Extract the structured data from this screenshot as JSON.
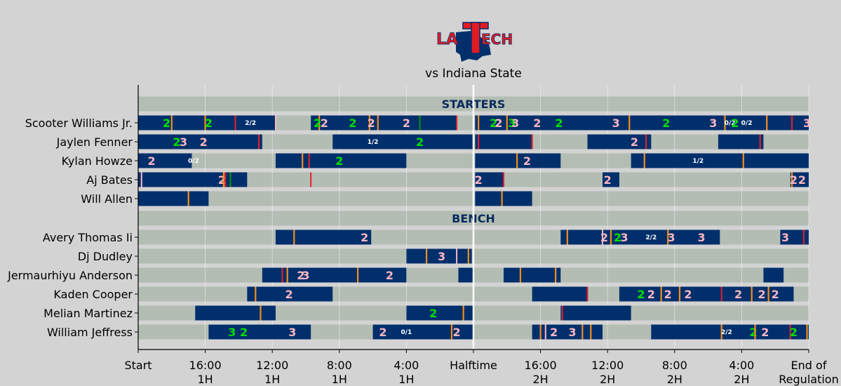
{
  "header": {
    "subtitle": "vs Indiana State",
    "logo_text": "LA TECH"
  },
  "colors": {
    "background": "#d3d3d3",
    "track": "#b3bdb3",
    "on_court": "#002f6c",
    "made_2": "#00e000",
    "made_3": "#00e000",
    "missed": "#ffb6c1",
    "foul": "#e8202a",
    "turnover": "#f28e1c",
    "steal": "#0a8a0a",
    "halftime_line": "#ffffff",
    "logo_red": "#e31b23",
    "logo_blue": "#002f6c"
  },
  "chart_data": {
    "type": "timeline",
    "subtitle": "vs Indiana State",
    "x_axis": {
      "unit": "game minutes elapsed",
      "range": [
        0,
        40
      ],
      "ticks": [
        {
          "value": 0,
          "label": "Start",
          "sub": ""
        },
        {
          "value": 4,
          "label": "16:00",
          "sub": "1H"
        },
        {
          "value": 8,
          "label": "12:00",
          "sub": "1H"
        },
        {
          "value": 12,
          "label": "8:00",
          "sub": "1H"
        },
        {
          "value": 16,
          "label": "4:00",
          "sub": "1H"
        },
        {
          "value": 20,
          "label": "Halftime",
          "sub": ""
        },
        {
          "value": 24,
          "label": "16:00",
          "sub": "2H"
        },
        {
          "value": 28,
          "label": "12:00",
          "sub": "2H"
        },
        {
          "value": 32,
          "label": "8:00",
          "sub": "2H"
        },
        {
          "value": 36,
          "label": "4:00",
          "sub": "2H"
        },
        {
          "value": 40,
          "label": "End of",
          "sub": "Regulation"
        }
      ]
    },
    "sections": [
      "STARTERS",
      "BENCH"
    ],
    "players": [
      {
        "name": "Scooter Williams Jr.",
        "group": "starters",
        "stints": [
          [
            0,
            8.2
          ],
          [
            10.3,
            19.0
          ],
          [
            20.1,
            40
          ]
        ],
        "events": [
          {
            "t": 1.7,
            "type": "made",
            "label": "2"
          },
          {
            "t": 2.0,
            "type": "turnover"
          },
          {
            "t": 4.0,
            "type": "turnover"
          },
          {
            "t": 4.2,
            "type": "made",
            "label": "2"
          },
          {
            "t": 5.8,
            "type": "foul"
          },
          {
            "t": 6.7,
            "type": "ft",
            "label": "2/2"
          },
          {
            "t": 8.2,
            "type": "missed-mark"
          },
          {
            "t": 10.8,
            "type": "turnover"
          },
          {
            "t": 10.7,
            "type": "made",
            "label": "2"
          },
          {
            "t": 11.1,
            "type": "missed",
            "label": "2"
          },
          {
            "t": 12.8,
            "type": "made",
            "label": "2"
          },
          {
            "t": 13.8,
            "type": "turnover"
          },
          {
            "t": 13.9,
            "type": "missed",
            "label": "2"
          },
          {
            "t": 14.3,
            "type": "turnover"
          },
          {
            "t": 16.0,
            "type": "missed",
            "label": "2"
          },
          {
            "t": 16.8,
            "type": "steal"
          },
          {
            "t": 19.0,
            "type": "foul"
          },
          {
            "t": 20.3,
            "type": "turnover"
          },
          {
            "t": 21.2,
            "type": "made",
            "label": "2"
          },
          {
            "t": 21.5,
            "type": "missed",
            "label": "2"
          },
          {
            "t": 22.0,
            "type": "turnover"
          },
          {
            "t": 22.3,
            "type": "made",
            "label": "3"
          },
          {
            "t": 22.5,
            "type": "missed",
            "label": "3"
          },
          {
            "t": 23.8,
            "type": "missed",
            "label": "2"
          },
          {
            "t": 25.1,
            "type": "made",
            "label": "2"
          },
          {
            "t": 28.5,
            "type": "missed",
            "label": "3"
          },
          {
            "t": 29.3,
            "type": "turnover"
          },
          {
            "t": 31.5,
            "type": "made",
            "label": "2"
          },
          {
            "t": 34.3,
            "type": "missed",
            "label": "3"
          },
          {
            "t": 35.0,
            "type": "turnover"
          },
          {
            "t": 35.3,
            "type": "ft",
            "label": "0/2"
          },
          {
            "t": 35.6,
            "type": "made",
            "label": "2"
          },
          {
            "t": 36.3,
            "type": "ft",
            "label": "0/2"
          },
          {
            "t": 37.5,
            "type": "turnover"
          },
          {
            "t": 39.0,
            "type": "foul"
          },
          {
            "t": 39.9,
            "type": "missed",
            "label": "3"
          }
        ]
      },
      {
        "name": "Jaylen Fenner",
        "group": "starters",
        "stints": [
          [
            0,
            7.4
          ],
          [
            11.6,
            20
          ],
          [
            20.1,
            23.5
          ],
          [
            26.8,
            30.6
          ],
          [
            34.6,
            37.3
          ]
        ],
        "events": [
          {
            "t": 2.3,
            "type": "made",
            "label": "2"
          },
          {
            "t": 2.7,
            "type": "missed",
            "label": "3"
          },
          {
            "t": 3.9,
            "type": "missed",
            "label": "2"
          },
          {
            "t": 7.2,
            "type": "foul"
          },
          {
            "t": 14.0,
            "type": "ft",
            "label": "1/2"
          },
          {
            "t": 16.8,
            "type": "made",
            "label": "2"
          },
          {
            "t": 20.3,
            "type": "foul"
          },
          {
            "t": 23.5,
            "type": "foul"
          },
          {
            "t": 29.6,
            "type": "missed",
            "label": "2"
          },
          {
            "t": 30.3,
            "type": "foul"
          },
          {
            "t": 37.1,
            "type": "foul"
          }
        ]
      },
      {
        "name": "Kylan Howze",
        "group": "starters",
        "stints": [
          [
            0,
            3.2
          ],
          [
            8.2,
            16.0
          ],
          [
            20.1,
            25.2
          ],
          [
            29.4,
            40
          ]
        ],
        "events": [
          {
            "t": 0.8,
            "type": "missed",
            "label": "2"
          },
          {
            "t": 3.3,
            "type": "ft",
            "label": "0/2"
          },
          {
            "t": 9.8,
            "type": "turnover"
          },
          {
            "t": 10.2,
            "type": "foul"
          },
          {
            "t": 12.0,
            "type": "made",
            "label": "2"
          },
          {
            "t": 22.6,
            "type": "turnover"
          },
          {
            "t": 23.2,
            "type": "missed",
            "label": "2"
          },
          {
            "t": 30.2,
            "type": "turnover"
          },
          {
            "t": 33.4,
            "type": "ft",
            "label": "1/2"
          },
          {
            "t": 36.1,
            "type": "turnover"
          }
        ]
      },
      {
        "name": "Aj Bates",
        "group": "starters",
        "stints": [
          [
            0,
            6.5
          ],
          [
            20.1,
            21.8
          ],
          [
            27.7,
            28.7
          ],
          [
            38.9,
            40
          ]
        ],
        "events": [
          {
            "t": 0.2,
            "type": "missed-mark"
          },
          {
            "t": 5.0,
            "type": "missed",
            "label": "2"
          },
          {
            "t": 5.1,
            "type": "turnover"
          },
          {
            "t": 5.2,
            "type": "foul"
          },
          {
            "t": 5.5,
            "type": "steal"
          },
          {
            "t": 10.3,
            "type": "foul"
          },
          {
            "t": 20.3,
            "type": "missed",
            "label": "2"
          },
          {
            "t": 21.8,
            "type": "foul"
          },
          {
            "t": 28.0,
            "type": "missed",
            "label": "2"
          },
          {
            "t": 39.0,
            "type": "turnover"
          },
          {
            "t": 39.1,
            "type": "missed",
            "label": "2"
          },
          {
            "t": 39.6,
            "type": "missed",
            "label": "2"
          }
        ]
      },
      {
        "name": "Will Allen",
        "group": "starters",
        "stints": [
          [
            0,
            4.2
          ],
          [
            20.1,
            23.5
          ]
        ],
        "events": [
          {
            "t": 3.0,
            "type": "turnover"
          },
          {
            "t": 21.7,
            "type": "turnover"
          }
        ]
      },
      {
        "name": "Avery Thomas Ii",
        "group": "bench",
        "stints": [
          [
            8.2,
            13.9
          ],
          [
            25.2,
            34.7
          ],
          [
            38.3,
            40
          ]
        ],
        "events": [
          {
            "t": 9.3,
            "type": "turnover"
          },
          {
            "t": 13.5,
            "type": "missed",
            "label": "2"
          },
          {
            "t": 25.6,
            "type": "turnover"
          },
          {
            "t": 27.7,
            "type": "missed-mark"
          },
          {
            "t": 27.8,
            "type": "missed",
            "label": "2"
          },
          {
            "t": 28.2,
            "type": "turnover"
          },
          {
            "t": 28.6,
            "type": "made",
            "label": "2"
          },
          {
            "t": 29.0,
            "type": "missed",
            "label": "3"
          },
          {
            "t": 30.6,
            "type": "ft",
            "label": "2/2"
          },
          {
            "t": 31.6,
            "type": "turnover"
          },
          {
            "t": 31.8,
            "type": "missed",
            "label": "3"
          },
          {
            "t": 33.6,
            "type": "missed",
            "label": "3"
          },
          {
            "t": 38.6,
            "type": "missed",
            "label": "3"
          },
          {
            "t": 39.7,
            "type": "foul"
          }
        ]
      },
      {
        "name": "Dj Dudley",
        "group": "bench",
        "stints": [
          [
            16.0,
            19.9
          ]
        ],
        "events": [
          {
            "t": 17.2,
            "type": "turnover"
          },
          {
            "t": 18.1,
            "type": "missed",
            "label": "3"
          },
          {
            "t": 19.0,
            "type": "missed-mark"
          },
          {
            "t": 19.7,
            "type": "turnover"
          }
        ]
      },
      {
        "name": "Jermaurhiyu Anderson",
        "group": "bench",
        "stints": [
          [
            7.4,
            16.0
          ],
          [
            19.1,
            20
          ],
          [
            21.8,
            25.2
          ],
          [
            37.3,
            38.5
          ]
        ],
        "events": [
          {
            "t": 8.6,
            "type": "foul"
          },
          {
            "t": 8.9,
            "type": "turnover"
          },
          {
            "t": 9.7,
            "type": "missed",
            "label": "2"
          },
          {
            "t": 10.0,
            "type": "missed",
            "label": "3"
          },
          {
            "t": 13.1,
            "type": "turnover"
          },
          {
            "t": 15.0,
            "type": "missed",
            "label": "2"
          },
          {
            "t": 22.8,
            "type": "turnover"
          },
          {
            "t": 24.9,
            "type": "turnover"
          }
        ]
      },
      {
        "name": "Kaden Cooper",
        "group": "bench",
        "stints": [
          [
            6.5,
            11.6
          ],
          [
            23.5,
            26.8
          ],
          [
            28.7,
            39.1
          ]
        ],
        "events": [
          {
            "t": 7.0,
            "type": "turnover"
          },
          {
            "t": 9.0,
            "type": "missed",
            "label": "2"
          },
          {
            "t": 26.8,
            "type": "foul"
          },
          {
            "t": 30.0,
            "type": "made",
            "label": "2"
          },
          {
            "t": 30.6,
            "type": "missed",
            "label": "2"
          },
          {
            "t": 31.2,
            "type": "turnover"
          },
          {
            "t": 31.6,
            "type": "missed",
            "label": "2"
          },
          {
            "t": 32.3,
            "type": "turnover"
          },
          {
            "t": 32.8,
            "type": "missed",
            "label": "2"
          },
          {
            "t": 34.8,
            "type": "foul"
          },
          {
            "t": 35.8,
            "type": "missed",
            "label": "2"
          },
          {
            "t": 36.6,
            "type": "turnover"
          },
          {
            "t": 37.2,
            "type": "missed",
            "label": "2"
          },
          {
            "t": 37.6,
            "type": "turnover"
          },
          {
            "t": 38.0,
            "type": "missed",
            "label": "2"
          }
        ]
      },
      {
        "name": "Melian Martinez",
        "group": "bench",
        "stints": [
          [
            3.4,
            8.2
          ],
          [
            16.0,
            20
          ],
          [
            25.2,
            29.4
          ]
        ],
        "events": [
          {
            "t": 7.3,
            "type": "turnover"
          },
          {
            "t": 17.6,
            "type": "made",
            "label": "2"
          },
          {
            "t": 19.4,
            "type": "turnover"
          },
          {
            "t": 25.3,
            "type": "foul"
          }
        ]
      },
      {
        "name": "William Jeffress",
        "group": "bench",
        "stints": [
          [
            4.2,
            10.3
          ],
          [
            14.0,
            20
          ],
          [
            23.5,
            27.7
          ],
          [
            30.6,
            40
          ]
        ],
        "events": [
          {
            "t": 5.6,
            "type": "made",
            "label": "3"
          },
          {
            "t": 6.3,
            "type": "made",
            "label": "2"
          },
          {
            "t": 9.2,
            "type": "missed",
            "label": "3"
          },
          {
            "t": 14.6,
            "type": "missed",
            "label": "2"
          },
          {
            "t": 16.0,
            "type": "ft",
            "label": "0/1"
          },
          {
            "t": 18.7,
            "type": "turnover"
          },
          {
            "t": 19.0,
            "type": "missed",
            "label": "2"
          },
          {
            "t": 24.0,
            "type": "turnover"
          },
          {
            "t": 24.3,
            "type": "missed-mark"
          },
          {
            "t": 24.8,
            "type": "missed",
            "label": "2"
          },
          {
            "t": 25.9,
            "type": "missed",
            "label": "3"
          },
          {
            "t": 26.5,
            "type": "turnover"
          },
          {
            "t": 27.0,
            "type": "turnover"
          },
          {
            "t": 34.8,
            "type": "turnover"
          },
          {
            "t": 35.1,
            "type": "ft",
            "label": "2/2"
          },
          {
            "t": 36.7,
            "type": "made",
            "label": "2"
          },
          {
            "t": 36.8,
            "type": "turnover"
          },
          {
            "t": 37.4,
            "type": "missed",
            "label": "2"
          },
          {
            "t": 38.9,
            "type": "foul"
          },
          {
            "t": 39.1,
            "type": "made",
            "label": "2"
          },
          {
            "t": 39.9,
            "type": "turnover"
          }
        ]
      }
    ]
  }
}
